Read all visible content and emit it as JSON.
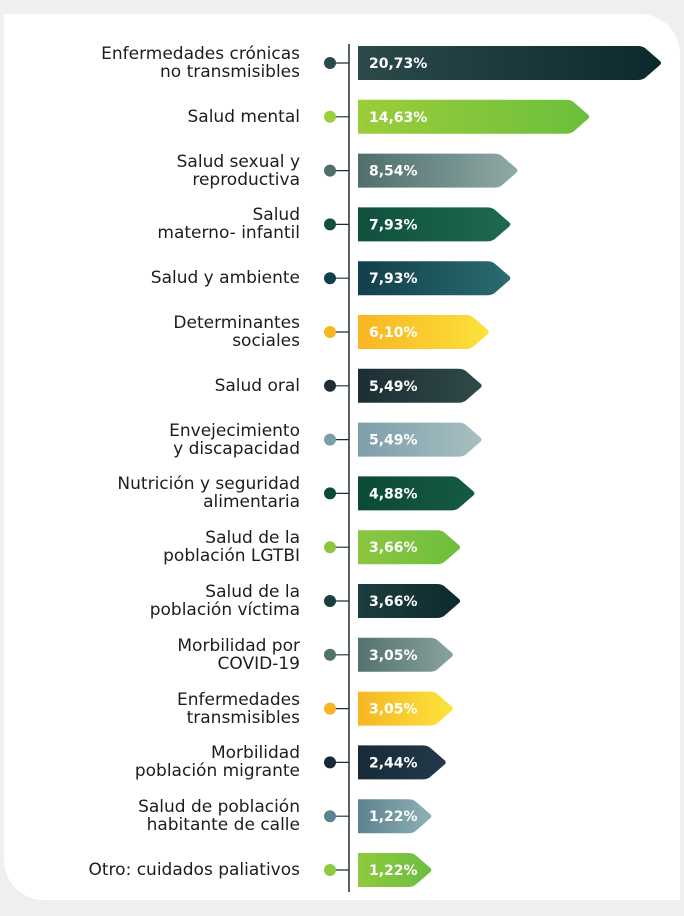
{
  "chart_data": {
    "type": "bar",
    "categories": [
      "Enfermedades crónicas\nno transmisibles",
      "Salud mental",
      "Salud sexual y\nreproductiva",
      "Salud\nmaterno- infantil",
      "Salud y ambiente",
      "Determinantes\nsociales",
      "Salud oral",
      "Envejecimiento\ny discapacidad",
      "Nutrición y seguridad\nalimentaria",
      "Salud de la\npoblación LGTBI",
      "Salud de la\npoblación víctima",
      "Morbilidad por\nCOVID-19",
      "Enfermedades\ntransmisibles",
      "Morbilidad\npoblación migrante",
      "Salud de población\nhabitante de calle",
      "Otro: cuidados paliativos"
    ],
    "values": [
      20.73,
      14.63,
      8.54,
      7.93,
      7.93,
      6.1,
      5.49,
      5.49,
      4.88,
      3.66,
      3.66,
      3.05,
      3.05,
      2.44,
      1.22,
      1.22
    ],
    "value_labels": [
      "20,73%",
      "14,63%",
      "8,54%",
      "7,93%",
      "7,93%",
      "6,10%",
      "5,49%",
      "5,49%",
      "4,88%",
      "3,66%",
      "3,66%",
      "3,05%",
      "3,05%",
      "2,44%",
      "1,22%",
      "1,22%"
    ],
    "colors": [
      [
        "#2c4a4c",
        "#0c2a2c"
      ],
      [
        "#9ccd3a",
        "#6bbf3c"
      ],
      [
        "#4f6e6c",
        "#8fa9a6"
      ],
      [
        "#10503e",
        "#1d6a4f"
      ],
      [
        "#123f4c",
        "#2a6c70"
      ],
      [
        "#f7b523",
        "#fde23a"
      ],
      [
        "#1d2e36",
        "#2f4a48"
      ],
      [
        "#7c9fa8",
        "#a8bfc2"
      ],
      [
        "#0c4a36",
        "#155a42"
      ],
      [
        "#8dc640",
        "#6cbf3e"
      ],
      [
        "#1c3e40",
        "#0e2a2c"
      ],
      [
        "#53726e",
        "#89a29e"
      ],
      [
        "#f6b624",
        "#fde43c"
      ],
      [
        "#182a38",
        "#23394a"
      ],
      [
        "#5c8390",
        "#8fb0b6"
      ],
      [
        "#8fca3e",
        "#6bbd40"
      ]
    ]
  }
}
